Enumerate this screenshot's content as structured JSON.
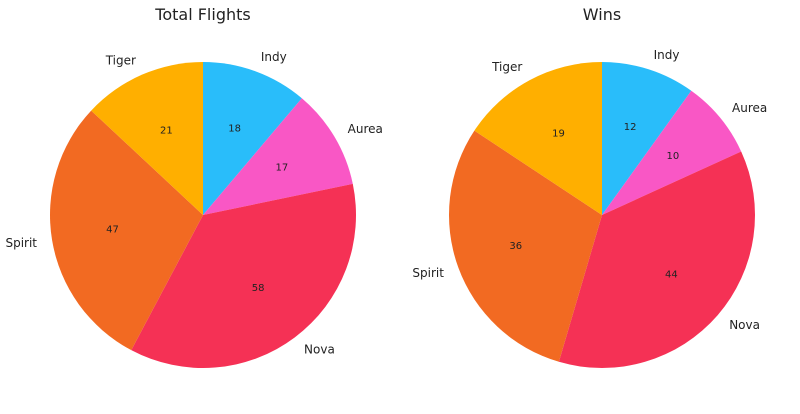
{
  "chart_data": [
    {
      "type": "pie",
      "title": "Total Flights",
      "categories": [
        "Indy",
        "Aurea",
        "Nova",
        "Spirit",
        "Tiger"
      ],
      "values": [
        18,
        17,
        58,
        47,
        21
      ],
      "colors": [
        "#29BDFA",
        "#F957C5",
        "#F53155",
        "#F26A22",
        "#FFAF00"
      ],
      "start_angle": "top",
      "direction": "clockwise"
    },
    {
      "type": "pie",
      "title": "Wins",
      "categories": [
        "Indy",
        "Aurea",
        "Nova",
        "Spirit",
        "Tiger"
      ],
      "values": [
        12,
        10,
        44,
        36,
        19
      ],
      "colors": [
        "#29BDFA",
        "#F957C5",
        "#F53155",
        "#F26A22",
        "#FFAF00"
      ],
      "start_angle": "top",
      "direction": "clockwise"
    }
  ]
}
